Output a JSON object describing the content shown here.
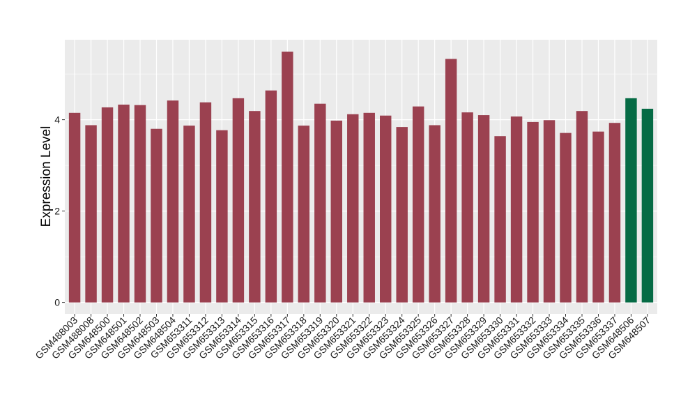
{
  "chart_data": {
    "type": "bar",
    "title": "",
    "xlabel": "",
    "ylabel": "Expression Level",
    "ylim": [
      -0.25,
      5.75
    ],
    "yticks": [
      0,
      2,
      4
    ],
    "grid": true,
    "legend": "none",
    "panel_background": "#ebebeb",
    "gridline_color": "#ffffff",
    "categories": [
      "GSM488003",
      "GSM488008",
      "GSM648500",
      "GSM648501",
      "GSM648502",
      "GSM648503",
      "GSM648504",
      "GSM653311",
      "GSM653312",
      "GSM653313",
      "GSM653314",
      "GSM653315",
      "GSM653316",
      "GSM653317",
      "GSM653318",
      "GSM653319",
      "GSM653320",
      "GSM653321",
      "GSM653322",
      "GSM653323",
      "GSM653324",
      "GSM653325",
      "GSM653326",
      "GSM653327",
      "GSM653328",
      "GSM653329",
      "GSM653330",
      "GSM653331",
      "GSM653332",
      "GSM653333",
      "GSM653334",
      "GSM653335",
      "GSM653336",
      "GSM653337",
      "GSM648506",
      "GSM648507"
    ],
    "values": [
      4.15,
      3.88,
      4.27,
      4.33,
      4.32,
      3.8,
      4.42,
      3.87,
      4.38,
      3.77,
      4.47,
      4.19,
      4.64,
      5.49,
      3.87,
      4.35,
      3.98,
      4.12,
      4.15,
      4.09,
      3.84,
      4.29,
      3.88,
      5.33,
      4.16,
      4.1,
      3.64,
      4.07,
      3.95,
      3.99,
      3.71,
      4.19,
      3.74,
      3.93,
      4.47,
      4.24
    ],
    "bar_colors": [
      "#9b4150",
      "#9b4150",
      "#9b4150",
      "#9b4150",
      "#9b4150",
      "#9b4150",
      "#9b4150",
      "#9b4150",
      "#9b4150",
      "#9b4150",
      "#9b4150",
      "#9b4150",
      "#9b4150",
      "#9b4150",
      "#9b4150",
      "#9b4150",
      "#9b4150",
      "#9b4150",
      "#9b4150",
      "#9b4150",
      "#9b4150",
      "#9b4150",
      "#9b4150",
      "#9b4150",
      "#9b4150",
      "#9b4150",
      "#9b4150",
      "#9b4150",
      "#9b4150",
      "#9b4150",
      "#9b4150",
      "#9b4150",
      "#9b4150",
      "#9b4150",
      "#066b45",
      "#066b45"
    ]
  }
}
